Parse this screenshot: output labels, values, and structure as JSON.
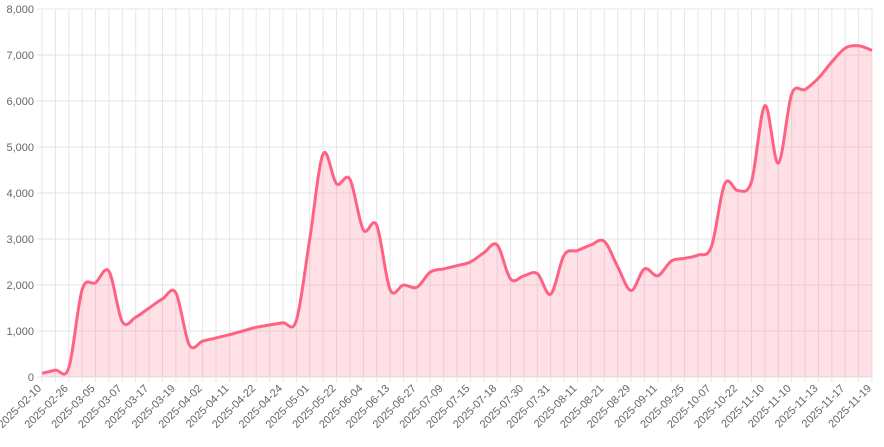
{
  "chart_data": {
    "type": "area",
    "categories": [
      "2025-02-10",
      null,
      "2025-02-26",
      null,
      "2025-03-05",
      null,
      "2025-03-07",
      null,
      "2025-03-17",
      null,
      "2025-03-19",
      null,
      "2025-04-02",
      null,
      "2025-04-11",
      null,
      "2025-04-22",
      null,
      "2025-04-24",
      null,
      "2025-05-01",
      null,
      "2025-05-22",
      null,
      "2025-06-04",
      null,
      "2025-06-13",
      null,
      "2025-06-27",
      null,
      "2025-07-09",
      null,
      "2025-07-15",
      null,
      "2025-07-18",
      null,
      "2025-07-30",
      null,
      "2025-07-31",
      null,
      "2025-08-11",
      null,
      "2025-08-21",
      null,
      "2025-08-29",
      null,
      "2025-09-11",
      null,
      "2025-09-25",
      null,
      "2025-10-07",
      null,
      "2025-10-22",
      null,
      "2025-11-10",
      null,
      "2025-11-10",
      null,
      "2025-11-13",
      null,
      "2025-11-17",
      null,
      "2025-11-19"
    ],
    "values": [
      80,
      150,
      200,
      1900,
      2050,
      2300,
      1200,
      1300,
      1500,
      1700,
      1830,
      700,
      780,
      850,
      920,
      1000,
      1080,
      1130,
      1180,
      1230,
      3000,
      4850,
      4200,
      4300,
      3200,
      3300,
      1900,
      2000,
      1950,
      2280,
      2350,
      2420,
      2500,
      2700,
      2870,
      2130,
      2200,
      2250,
      1800,
      2650,
      2750,
      2870,
      2950,
      2400,
      1880,
      2350,
      2200,
      2520,
      2580,
      2650,
      2830,
      4200,
      4050,
      4250,
      5900,
      4650,
      6150,
      6250,
      6500,
      6850,
      7150,
      7200,
      7100
    ],
    "color": "#ff6384",
    "ylim": [
      0,
      8000
    ],
    "yticks": [
      0,
      {
        "value": 1000,
        "label": "1,000"
      },
      {
        "value": 2000,
        "label": "2,000"
      },
      {
        "value": 3000,
        "label": "3,000"
      },
      {
        "value": 4000,
        "label": "4,000"
      },
      {
        "value": 5000,
        "label": "5,000"
      },
      {
        "value": 6000,
        "label": "6,000"
      },
      {
        "value": 7000,
        "label": "7,000"
      },
      {
        "value": 8000,
        "label": "8,000"
      }
    ],
    "grid": true
  }
}
